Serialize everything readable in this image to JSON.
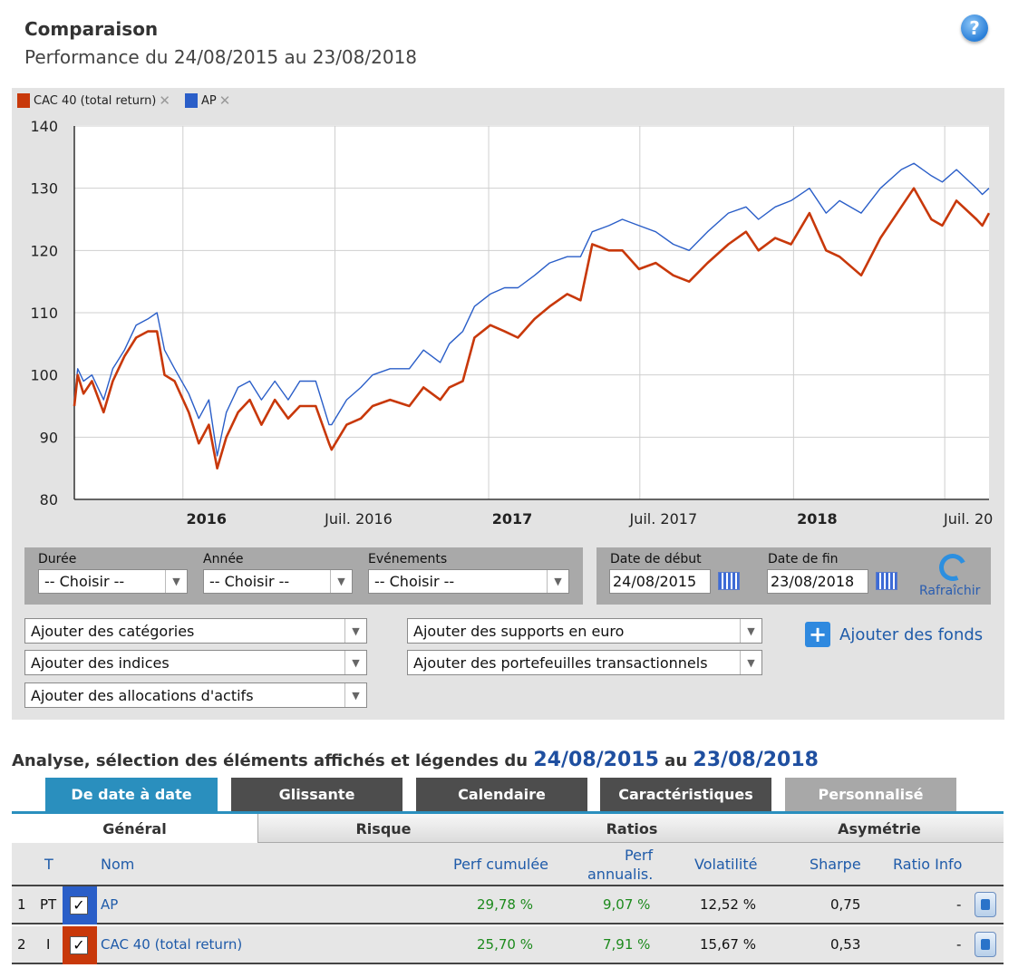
{
  "header": {
    "title": "Comparaison",
    "subtitle": "Performance du 24/08/2015 au 23/08/2018",
    "help_glyph": "?"
  },
  "legend": [
    {
      "label": "CAC 40 (total return)",
      "color": "#c8380a",
      "remove": "✕"
    },
    {
      "label": "AP",
      "color": "#2a5ec8",
      "remove": "✕"
    }
  ],
  "chart_data": {
    "type": "line",
    "title": "",
    "xlabel": "",
    "ylabel": "",
    "ylim": [
      80,
      140
    ],
    "yticks": [
      "80",
      "90",
      "100",
      "110",
      "120",
      "130",
      "140"
    ],
    "xlim": [
      "2015-08-24",
      "2018-08-23"
    ],
    "xticks": [
      {
        "date": "2016-01-01",
        "label": "2016",
        "bold": true
      },
      {
        "date": "2016-07-01",
        "label": "Juil. 2016",
        "bold": false
      },
      {
        "date": "2017-01-01",
        "label": "2017",
        "bold": true
      },
      {
        "date": "2017-07-01",
        "label": "Juil. 2017",
        "bold": false
      },
      {
        "date": "2018-01-01",
        "label": "2018",
        "bold": true
      },
      {
        "date": "2018-07-01",
        "label": "Juil. 20",
        "bold": false
      }
    ],
    "grid": true,
    "legend_position": "top-left",
    "series": [
      {
        "name": "AP",
        "color": "#2a5ec8",
        "points": [
          [
            "2015-08-24",
            96
          ],
          [
            "2015-08-28",
            101
          ],
          [
            "2015-09-04",
            99
          ],
          [
            "2015-09-14",
            100
          ],
          [
            "2015-09-28",
            96
          ],
          [
            "2015-10-09",
            101
          ],
          [
            "2015-10-23",
            104
          ],
          [
            "2015-11-06",
            108
          ],
          [
            "2015-11-20",
            109
          ],
          [
            "2015-12-01",
            110
          ],
          [
            "2015-12-10",
            104
          ],
          [
            "2015-12-22",
            101
          ],
          [
            "2016-01-08",
            97
          ],
          [
            "2016-01-20",
            93
          ],
          [
            "2016-02-01",
            96
          ],
          [
            "2016-02-11",
            87
          ],
          [
            "2016-02-22",
            94
          ],
          [
            "2016-03-07",
            98
          ],
          [
            "2016-03-21",
            99
          ],
          [
            "2016-04-04",
            96
          ],
          [
            "2016-04-20",
            99
          ],
          [
            "2016-05-06",
            96
          ],
          [
            "2016-05-20",
            99
          ],
          [
            "2016-06-08",
            99
          ],
          [
            "2016-06-24",
            92
          ],
          [
            "2016-06-27",
            92
          ],
          [
            "2016-07-15",
            96
          ],
          [
            "2016-08-01",
            98
          ],
          [
            "2016-08-15",
            100
          ],
          [
            "2016-09-05",
            101
          ],
          [
            "2016-09-28",
            101
          ],
          [
            "2016-10-15",
            104
          ],
          [
            "2016-11-04",
            102
          ],
          [
            "2016-11-15",
            105
          ],
          [
            "2016-12-01",
            107
          ],
          [
            "2016-12-15",
            111
          ],
          [
            "2017-01-03",
            113
          ],
          [
            "2017-01-20",
            114
          ],
          [
            "2017-02-05",
            114
          ],
          [
            "2017-02-25",
            116
          ],
          [
            "2017-03-15",
            118
          ],
          [
            "2017-04-05",
            119
          ],
          [
            "2017-04-21",
            119
          ],
          [
            "2017-05-05",
            123
          ],
          [
            "2017-05-25",
            124
          ],
          [
            "2017-06-10",
            125
          ],
          [
            "2017-06-30",
            124
          ],
          [
            "2017-07-20",
            123
          ],
          [
            "2017-08-10",
            121
          ],
          [
            "2017-08-29",
            120
          ],
          [
            "2017-09-20",
            123
          ],
          [
            "2017-10-15",
            126
          ],
          [
            "2017-11-05",
            127
          ],
          [
            "2017-11-20",
            125
          ],
          [
            "2017-12-10",
            127
          ],
          [
            "2017-12-29",
            128
          ],
          [
            "2018-01-20",
            130
          ],
          [
            "2018-02-09",
            126
          ],
          [
            "2018-02-25",
            128
          ],
          [
            "2018-03-23",
            126
          ],
          [
            "2018-04-15",
            130
          ],
          [
            "2018-05-10",
            133
          ],
          [
            "2018-05-25",
            134
          ],
          [
            "2018-06-15",
            132
          ],
          [
            "2018-06-28",
            131
          ],
          [
            "2018-07-15",
            133
          ],
          [
            "2018-08-08",
            130
          ],
          [
            "2018-08-15",
            129
          ],
          [
            "2018-08-23",
            130
          ]
        ]
      },
      {
        "name": "CAC 40 (total return)",
        "color": "#c8380a",
        "points": [
          [
            "2015-08-24",
            95
          ],
          [
            "2015-08-28",
            100
          ],
          [
            "2015-09-04",
            97
          ],
          [
            "2015-09-14",
            99
          ],
          [
            "2015-09-28",
            94
          ],
          [
            "2015-10-09",
            99
          ],
          [
            "2015-10-23",
            103
          ],
          [
            "2015-11-06",
            106
          ],
          [
            "2015-11-20",
            107
          ],
          [
            "2015-12-01",
            107
          ],
          [
            "2015-12-10",
            100
          ],
          [
            "2015-12-22",
            99
          ],
          [
            "2016-01-08",
            94
          ],
          [
            "2016-01-20",
            89
          ],
          [
            "2016-02-01",
            92
          ],
          [
            "2016-02-11",
            85
          ],
          [
            "2016-02-22",
            90
          ],
          [
            "2016-03-07",
            94
          ],
          [
            "2016-03-21",
            96
          ],
          [
            "2016-04-04",
            92
          ],
          [
            "2016-04-20",
            96
          ],
          [
            "2016-05-06",
            93
          ],
          [
            "2016-05-20",
            95
          ],
          [
            "2016-06-08",
            95
          ],
          [
            "2016-06-24",
            89
          ],
          [
            "2016-06-27",
            88
          ],
          [
            "2016-07-15",
            92
          ],
          [
            "2016-08-01",
            93
          ],
          [
            "2016-08-15",
            95
          ],
          [
            "2016-09-05",
            96
          ],
          [
            "2016-09-28",
            95
          ],
          [
            "2016-10-15",
            98
          ],
          [
            "2016-11-04",
            96
          ],
          [
            "2016-11-15",
            98
          ],
          [
            "2016-12-01",
            99
          ],
          [
            "2016-12-15",
            106
          ],
          [
            "2017-01-03",
            108
          ],
          [
            "2017-01-20",
            107
          ],
          [
            "2017-02-05",
            106
          ],
          [
            "2017-02-25",
            109
          ],
          [
            "2017-03-15",
            111
          ],
          [
            "2017-04-05",
            113
          ],
          [
            "2017-04-21",
            112
          ],
          [
            "2017-05-05",
            121
          ],
          [
            "2017-05-25",
            120
          ],
          [
            "2017-06-10",
            120
          ],
          [
            "2017-06-30",
            117
          ],
          [
            "2017-07-20",
            118
          ],
          [
            "2017-08-10",
            116
          ],
          [
            "2017-08-29",
            115
          ],
          [
            "2017-09-20",
            118
          ],
          [
            "2017-10-15",
            121
          ],
          [
            "2017-11-05",
            123
          ],
          [
            "2017-11-20",
            120
          ],
          [
            "2017-12-10",
            122
          ],
          [
            "2017-12-29",
            121
          ],
          [
            "2018-01-20",
            126
          ],
          [
            "2018-02-09",
            120
          ],
          [
            "2018-02-25",
            119
          ],
          [
            "2018-03-23",
            116
          ],
          [
            "2018-04-15",
            122
          ],
          [
            "2018-05-10",
            127
          ],
          [
            "2018-05-25",
            130
          ],
          [
            "2018-06-15",
            125
          ],
          [
            "2018-06-28",
            124
          ],
          [
            "2018-07-15",
            128
          ],
          [
            "2018-08-08",
            125
          ],
          [
            "2018-08-15",
            124
          ],
          [
            "2018-08-23",
            126
          ]
        ]
      }
    ]
  },
  "filters": {
    "duree_label": "Durée",
    "annee_label": "Année",
    "evenements_label": "Evénements",
    "choose": "-- Choisir --",
    "start_label": "Date de début",
    "end_label": "Date de fin",
    "start_value": "24/08/2015",
    "end_value": "23/08/2018",
    "refresh_label": "Rafraîchir",
    "arrow": "▼"
  },
  "add": {
    "categories": "Ajouter des catégories",
    "indices": "Ajouter des indices",
    "allocations": "Ajouter des allocations d'actifs",
    "supports": "Ajouter des supports en euro",
    "portefeuilles": "Ajouter des portefeuilles transactionnels",
    "funds": "Ajouter des fonds",
    "plus": "+"
  },
  "analysis": {
    "prefix": "Analyse, sélection des éléments affichés et légendes du",
    "from": "24/08/2015",
    "mid": "au",
    "to": "23/08/2018"
  },
  "tabs": [
    {
      "label": "De date à date",
      "color": "#2a8fbe"
    },
    {
      "label": "Glissante",
      "color": "#4d4d4d"
    },
    {
      "label": "Calendaire",
      "color": "#4d4d4d"
    },
    {
      "label": "Caractéristiques",
      "color": "#4d4d4d"
    },
    {
      "label": "Personnalisé",
      "color": "#a8a8a8"
    }
  ],
  "subtabs": [
    "Général",
    "Risque",
    "Ratios",
    "Asymétrie"
  ],
  "table": {
    "headers": {
      "t": "T",
      "nom": "Nom",
      "perf_cum": "Perf cumulée",
      "perf_ann_1": "Perf",
      "perf_ann_2": "annualis.",
      "vol": "Volatilité",
      "sharpe": "Sharpe",
      "ratio": "Ratio Info"
    },
    "rows": [
      {
        "num": "1",
        "type": "PT",
        "color": "#2a5ec8",
        "check": "✓",
        "name": "AP",
        "perf_cum": "29,78 %",
        "perf_ann": "9,07 %",
        "vol": "12,52 %",
        "sharpe": "0,75",
        "ratio": "-"
      },
      {
        "num": "2",
        "type": "I",
        "color": "#c8380a",
        "check": "✓",
        "name": "CAC 40 (total return)",
        "perf_cum": "25,70 %",
        "perf_ann": "7,91 %",
        "vol": "15,67 %",
        "sharpe": "0,53",
        "ratio": "-"
      }
    ]
  }
}
